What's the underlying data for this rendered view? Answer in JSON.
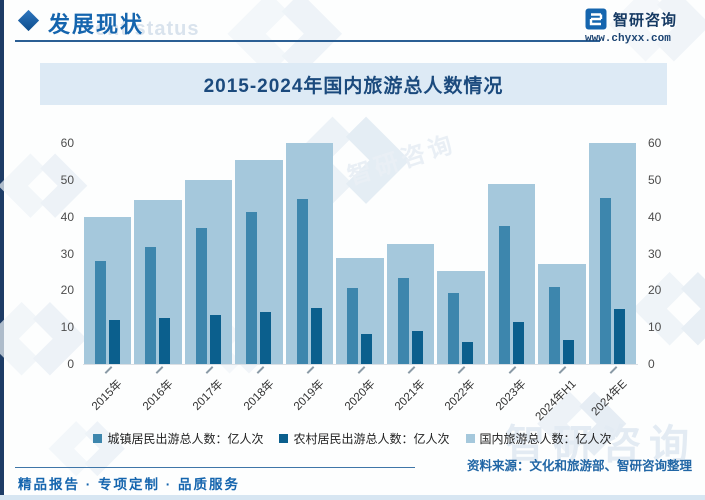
{
  "page": {
    "header": {
      "section_title": "发展现状",
      "section_title_watermark": "ent status",
      "brand": {
        "name": "智研咨询",
        "website": "www.chyxx.com"
      }
    },
    "chart_title": "2015-2024年国内旅游总人数情况",
    "footer": {
      "slogan": "精品报告 · 专项定制 · 品质服务",
      "source": "资料来源：文化和旅游部、智研咨询整理"
    },
    "watermark_brand_text": "智研咨询"
  },
  "colors": {
    "accent_blue": "#1565ae",
    "title_navy": "#1b4a7d",
    "title_band_bg": "#ddeaf5",
    "left_strip_navy": "#1d3c66",
    "bar_urban": "#3d86ad",
    "bar_rural": "#0b5f8d",
    "bar_total": "#a5c8dc"
  },
  "chart_data": {
    "type": "bar",
    "title": "2015-2024年国内旅游总人数情况",
    "categories": [
      "2015年",
      "2016年",
      "2017年",
      "2018年",
      "2019年",
      "2020年",
      "2021年",
      "2022年",
      "2023年",
      "2024年H1",
      "2024年E"
    ],
    "series": [
      {
        "name": "城镇居民出游总人数：亿人次",
        "color": "#3d86ad",
        "values": [
          28.0,
          31.9,
          36.8,
          41.2,
          44.7,
          20.6,
          23.4,
          19.3,
          37.6,
          20.9,
          45.0
        ]
      },
      {
        "name": "农村居民出游总人数：亿人次",
        "color": "#0b5f8d",
        "values": [
          12.0,
          12.4,
          13.2,
          14.2,
          15.3,
          8.1,
          9.0,
          6.0,
          11.3,
          6.4,
          15.0
        ]
      },
      {
        "name": "国内旅游总人数：亿人次",
        "color": "#a5c8dc",
        "values": [
          40.0,
          44.4,
          50.0,
          55.4,
          60.1,
          28.8,
          32.5,
          25.3,
          48.9,
          27.2,
          60.0
        ]
      }
    ],
    "unit": "亿人次",
    "xlabel": "",
    "ylabel": "",
    "ylim": [
      0,
      60
    ],
    "yticks": [
      0,
      10,
      20,
      30,
      40,
      50,
      60
    ],
    "grid": false,
    "legend_position": "bottom"
  }
}
